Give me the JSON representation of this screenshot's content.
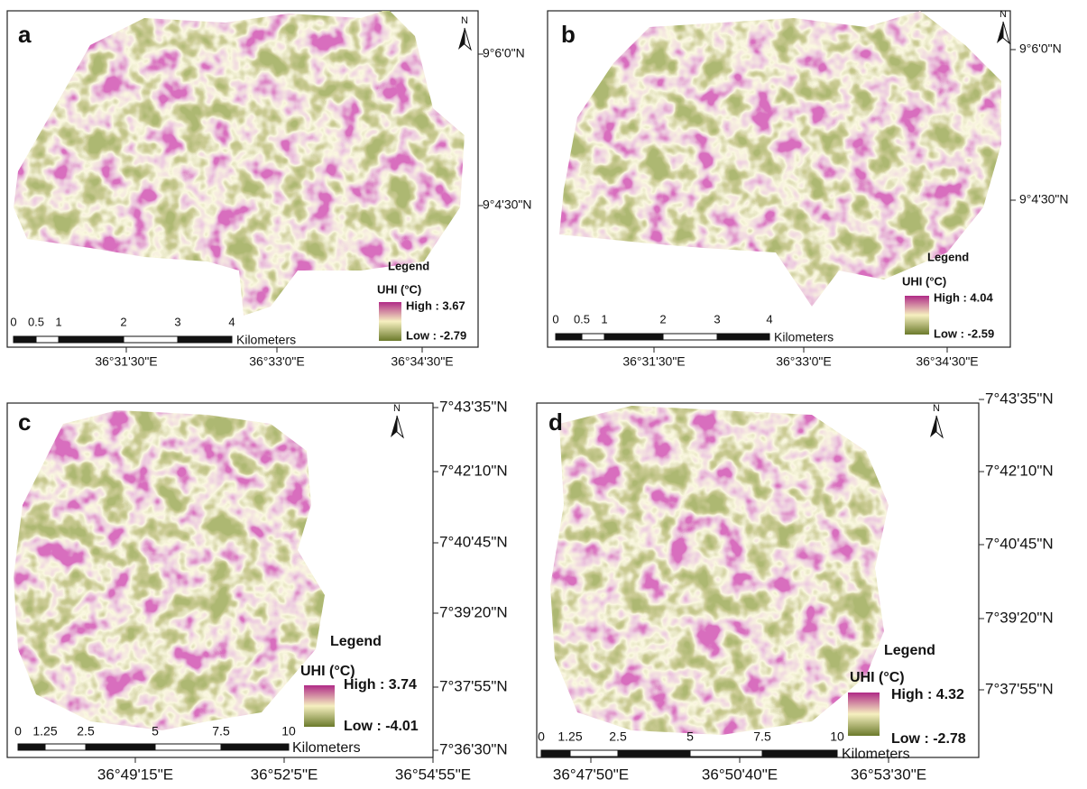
{
  "panels": [
    {
      "label": "a",
      "north": "N",
      "latitude_labels": [
        "9°6'0\"N",
        "9°4'30\"N"
      ],
      "longitude_labels": [
        "36°31'30\"E",
        "36°33'0\"E",
        "36°34'30\"E"
      ],
      "scale_labels": [
        "0",
        "0.5",
        "1",
        "2",
        "3",
        "4"
      ],
      "scale_unit": "Kilometers",
      "legend": {
        "title": "Legend",
        "variable": "UHI (°C)",
        "high": "High : 3.67",
        "low": "Low : -2.79"
      }
    },
    {
      "label": "b",
      "north": "N",
      "latitude_labels": [
        "9°6'0\"N",
        "9°4'30\"N"
      ],
      "longitude_labels": [
        "36°31'30\"E",
        "36°33'0\"E",
        "36°34'30\"E"
      ],
      "scale_labels": [
        "0",
        "0.5",
        "1",
        "2",
        "3",
        "4"
      ],
      "scale_unit": "Kilometers",
      "legend": {
        "title": "Legend",
        "variable": "UHI (°C)",
        "high": "High : 4.04",
        "low": "Low : -2.59"
      }
    },
    {
      "label": "c",
      "north": "N",
      "latitude_labels": [
        "7°43'35\"N",
        "7°42'10\"N",
        "7°40'45\"N",
        "7°39'20\"N",
        "7°37'55\"N",
        "7°36'30\"N"
      ],
      "longitude_labels": [
        "36°49'15\"E",
        "36°52'5\"E",
        "36°54'55\"E"
      ],
      "scale_labels": [
        "0",
        "1.25",
        "2.5",
        "5",
        "7.5",
        "10"
      ],
      "scale_unit": "Kilometers",
      "legend": {
        "title": "Legend",
        "variable": "UHI (°C)",
        "high": "High : 3.74",
        "low": "Low : -4.01"
      }
    },
    {
      "label": "d",
      "north": "N",
      "latitude_labels": [
        "7°43'35\"N",
        "7°42'10\"N",
        "7°40'45\"N",
        "7°39'20\"N",
        "7°37'55\"N"
      ],
      "longitude_labels": [
        "36°47'50\"E",
        "36°50'40\"E",
        "36°53'30\"E"
      ],
      "scale_labels": [
        "0",
        "1.25",
        "2.5",
        "5",
        "7.5",
        "10"
      ],
      "scale_unit": "Kilometers",
      "legend": {
        "title": "Legend",
        "variable": "UHI (°C)",
        "high": "High : 4.32",
        "low": "Low : -2.78"
      }
    }
  ]
}
